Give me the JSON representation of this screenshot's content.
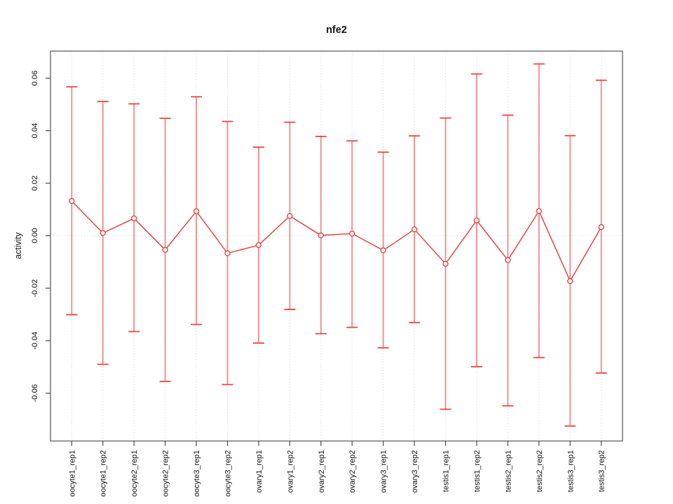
{
  "window": {
    "background": "#ffffff"
  },
  "chart_data": {
    "type": "line",
    "title": "nfe2",
    "xlabel": "",
    "ylabel": "activity",
    "legend": "none",
    "grid": "vertical dotted gridline at each category plus dotted horizontal line at y=0",
    "categories": [
      "oocyte1_rep1",
      "oocyte1_rep2",
      "oocyte2_rep1",
      "oocyte2_rep2",
      "oocyte3_rep1",
      "oocyte3_rep2",
      "ovary1_rep1",
      "ovary1_rep2",
      "ovary2_rep1",
      "ovary2_rep2",
      "ovary3_rep1",
      "ovary3_rep2",
      "testis1_rep1",
      "testis1_rep2",
      "testis2_rep1",
      "testis2_rep2",
      "testis3_rep1",
      "testis3_rep2"
    ],
    "series": [
      {
        "name": "activity",
        "marker": "open-circle",
        "values": [
          0.0132,
          0.001,
          0.0066,
          -0.0054,
          0.0093,
          -0.0067,
          -0.0036,
          0.0075,
          0.0001,
          0.0008,
          -0.0056,
          0.0024,
          -0.0107,
          0.0058,
          -0.0093,
          0.0094,
          -0.0173,
          0.0033
        ],
        "error_upper": [
          0.0567,
          0.0511,
          0.0502,
          0.0447,
          0.0529,
          0.0435,
          0.0337,
          0.0432,
          0.0378,
          0.0361,
          0.0318,
          0.038,
          0.0448,
          0.0616,
          0.0459,
          0.0654,
          0.0381,
          0.0592
        ],
        "error_lower": [
          -0.0301,
          -0.049,
          -0.0365,
          -0.0555,
          -0.0338,
          -0.0567,
          -0.0409,
          -0.0281,
          -0.0373,
          -0.0349,
          -0.0427,
          -0.0331,
          -0.0661,
          -0.0499,
          -0.0648,
          -0.0464,
          -0.0725,
          -0.0523
        ]
      }
    ],
    "yticks": [
      -0.06,
      -0.04,
      -0.02,
      0,
      0.02,
      0.04,
      0.06
    ],
    "ytick_labels": [
      "-0.06",
      "-0.04",
      "-0.02",
      "0.00",
      "0.02",
      "0.04",
      "0.06"
    ],
    "ylim": [
      -0.0782,
      0.0703
    ],
    "colors": {
      "point": "#e84444",
      "line": "#e84444",
      "error_cap": "#ee4040",
      "error_stem": "#f07070",
      "grid": "#d4d4d4",
      "zero_line": "#d9d9d9",
      "box": "#777777",
      "tick": "#4a4a4a",
      "text": "#111111"
    }
  }
}
